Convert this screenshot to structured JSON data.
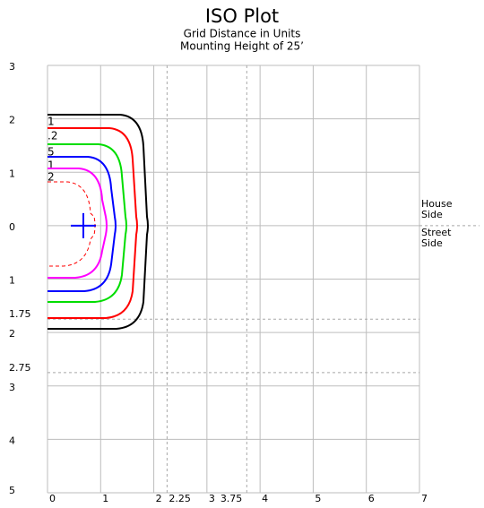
{
  "chart_data": {
    "type": "iso",
    "title": "ISO Plot",
    "subtitle": [
      "Grid Distance in Units",
      "Mounting Height of 25’"
    ],
    "xlim": [
      0,
      7
    ],
    "ylim": [
      -3,
      5
    ],
    "xticks": [
      0,
      1,
      2,
      3,
      4,
      5,
      6,
      7
    ],
    "yticks": [
      {
        "value": -3,
        "label": "3"
      },
      {
        "value": -2,
        "label": "2"
      },
      {
        "value": -1,
        "label": "1"
      },
      {
        "value": 0,
        "label": "0"
      },
      {
        "value": 1,
        "label": "1"
      },
      {
        "value": 2,
        "label": "2"
      },
      {
        "value": 3,
        "label": "3"
      },
      {
        "value": 4,
        "label": "4"
      },
      {
        "value": 5,
        "label": "5"
      }
    ],
    "xrefs": [
      2.25,
      3.75
    ],
    "yrefs": [
      1.75,
      2.75
    ],
    "grid": true,
    "side_labels": [
      "House",
      "Side",
      "Street",
      "Side"
    ],
    "contours": [
      {
        "name": "1",
        "color": "#000000"
      },
      {
        "name": ".2",
        "color": "#ff0000"
      },
      {
        "name": "5",
        "color": "#00dd00"
      },
      {
        "name": "1",
        "color": "#0000ff"
      },
      {
        "name": "2",
        "color": "#ff00ff"
      }
    ],
    "inner_color": "#ff0000",
    "marker_color": "#0000ff"
  }
}
